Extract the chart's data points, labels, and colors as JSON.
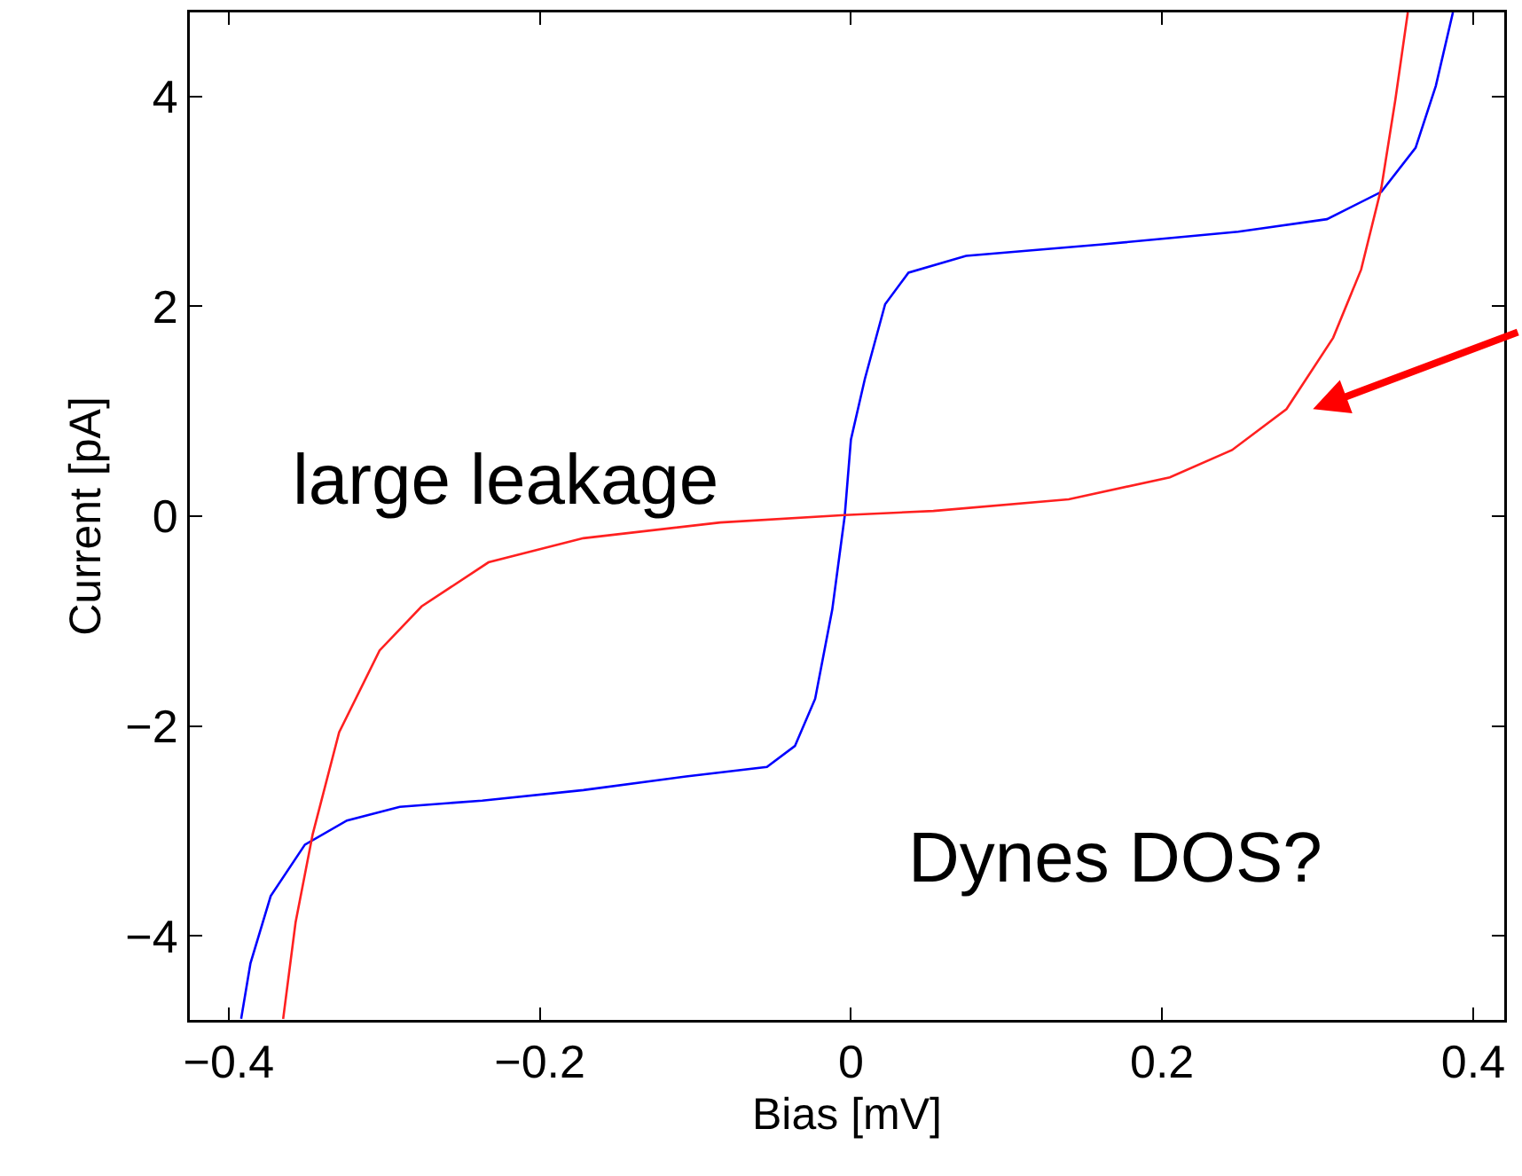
{
  "chart_data": {
    "type": "line",
    "xlabel": "Bias [mV]",
    "ylabel": "Current [pA]",
    "xlim": [
      -0.425,
      0.42
    ],
    "ylim": [
      -4.8,
      4.8
    ],
    "xticks": [
      {
        "value": -0.4,
        "label": "−0.4"
      },
      {
        "value": -0.2,
        "label": "−0.2"
      },
      0,
      0.2,
      0.4
    ],
    "yticks": [
      {
        "value": -4,
        "label": "−4"
      },
      {
        "value": -2,
        "label": "−2"
      },
      0,
      2,
      4
    ],
    "marker": "none",
    "line_style": "solid",
    "annotations": [
      "large leakage",
      "Dynes DOS?"
    ],
    "series": [
      {
        "color": "#0000ff",
        "x": [
          -0.392,
          -0.386,
          -0.373,
          -0.351,
          -0.324,
          -0.29,
          -0.237,
          -0.172,
          -0.106,
          -0.054,
          -0.036,
          -0.023,
          -0.012,
          -0.004,
          0.0,
          0.009,
          0.022,
          0.037,
          0.074,
          0.162,
          0.249,
          0.306,
          0.341,
          0.363,
          0.376,
          0.387
        ],
        "values": [
          -4.79,
          -4.26,
          -3.62,
          -3.13,
          -2.9,
          -2.77,
          -2.71,
          -2.61,
          -2.48,
          -2.39,
          -2.19,
          -1.74,
          -0.89,
          0.0,
          0.73,
          1.31,
          2.02,
          2.32,
          2.48,
          2.59,
          2.71,
          2.83,
          3.09,
          3.51,
          4.1,
          4.8
        ]
      },
      {
        "color": "#ff2020",
        "x": [
          -0.365,
          -0.357,
          -0.346,
          -0.329,
          -0.303,
          -0.276,
          -0.233,
          -0.172,
          -0.084,
          -0.004,
          0.053,
          0.14,
          0.205,
          0.245,
          0.28,
          0.31,
          0.328,
          0.341,
          0.35,
          0.358
        ],
        "values": [
          -4.79,
          -3.87,
          -3.03,
          -2.06,
          -1.28,
          -0.86,
          -0.44,
          -0.21,
          -0.06,
          0.01,
          0.05,
          0.16,
          0.37,
          0.63,
          1.02,
          1.7,
          2.35,
          3.13,
          3.97,
          4.8
        ]
      }
    ]
  }
}
